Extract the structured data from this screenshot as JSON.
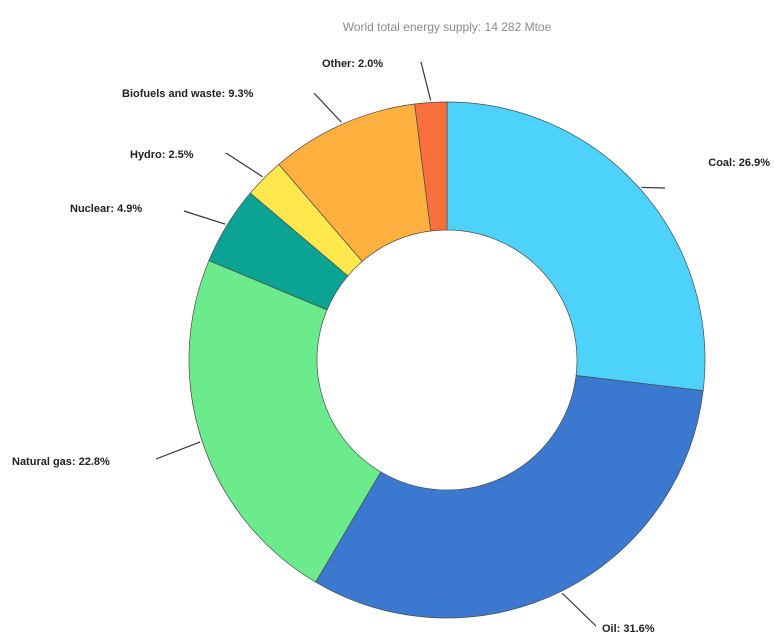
{
  "chart_data": {
    "type": "pie",
    "donut": true,
    "title": "World total energy supply: 14 282 Mtoe",
    "slices": [
      {
        "name": "Coal",
        "label": "Coal: 26.9%",
        "value": 26.9,
        "color": "#4dd2fc"
      },
      {
        "name": "Oil",
        "label": "Oil: 31.6%",
        "value": 31.6,
        "color": "#3b79d1"
      },
      {
        "name": "Natural gas",
        "label": "Natural gas: 22.8%",
        "value": 22.8,
        "color": "#6ceb8c"
      },
      {
        "name": "Nuclear",
        "label": "Nuclear: 4.9%",
        "value": 4.9,
        "color": "#0aa394"
      },
      {
        "name": "Hydro",
        "label": "Hydro: 2.5%",
        "value": 2.5,
        "color": "#ffe84d"
      },
      {
        "name": "Biofuels and waste",
        "label": "Biofuels and waste: 9.3%",
        "value": 9.3,
        "color": "#ffb03f"
      },
      {
        "name": "Other",
        "label": "Other: 2.0%",
        "value": 2.0,
        "color": "#f96f3e"
      }
    ]
  }
}
